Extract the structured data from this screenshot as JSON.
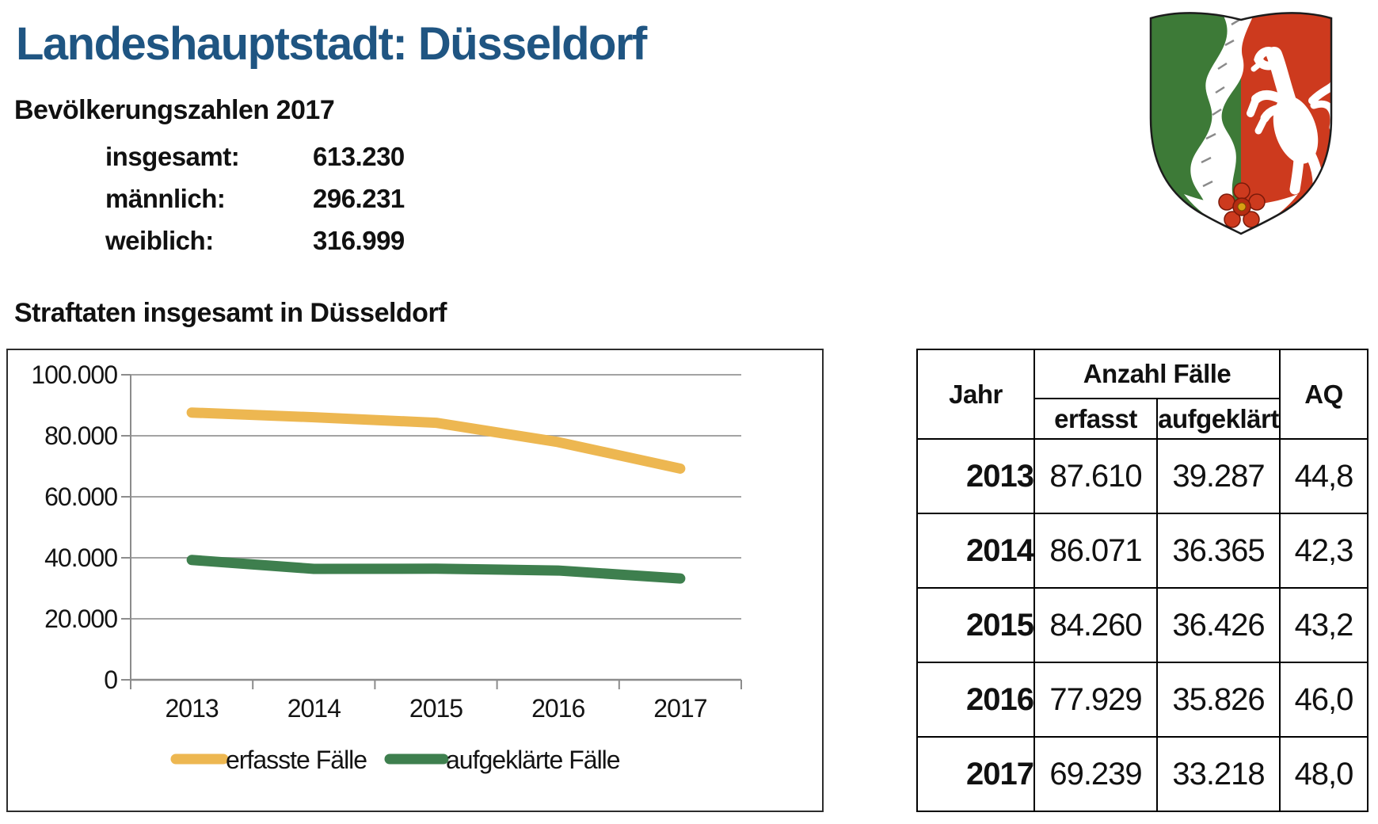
{
  "page": {
    "title": "Landeshauptstadt: Düsseldorf",
    "population": {
      "heading": "Bevölkerungszahlen 2017",
      "rows": [
        {
          "label": "insgesamt:",
          "value": "613.230"
        },
        {
          "label": "männlich:",
          "value": "296.231"
        },
        {
          "label": "weiblich:",
          "value": "316.999"
        }
      ]
    },
    "crimes_heading": "Straftaten insgesamt in Düsseldorf"
  },
  "coat_of_arms": {
    "name": "Landeswappen Nordrhein-Westfalen",
    "colors": {
      "green": "#3d7a37",
      "red": "#cd3a1e",
      "white": "#ffffff",
      "rose_gold": "#d8a013"
    }
  },
  "chart_data": {
    "type": "line",
    "title": "",
    "categories": [
      "2013",
      "2014",
      "2015",
      "2016",
      "2017"
    ],
    "series": [
      {
        "name": "erfasste Fälle",
        "color": "#EDB751",
        "values": [
          87610,
          86071,
          84260,
          77929,
          69239
        ]
      },
      {
        "name": "aufgeklärte Fälle",
        "color": "#3E7F4E",
        "values": [
          39287,
          36365,
          36426,
          35826,
          33218
        ]
      }
    ],
    "ylim": [
      0,
      100000
    ],
    "ytick_labels_top_down": [
      "100.000",
      "80.000",
      "60.000",
      "40.000",
      "20.000",
      "0"
    ],
    "grid": true,
    "legend_position": "bottom"
  },
  "table": {
    "headers": {
      "jahr": "Jahr",
      "anzahl": "Anzahl Fälle",
      "erfasst": "erfasst",
      "aufgeklaert": "aufgeklärt",
      "aq": "AQ"
    },
    "rows": [
      {
        "jahr": "2013",
        "erfasst": "87.610",
        "aufgeklaert": "39.287",
        "aq": "44,8"
      },
      {
        "jahr": "2014",
        "erfasst": "86.071",
        "aufgeklaert": "36.365",
        "aq": "42,3"
      },
      {
        "jahr": "2015",
        "erfasst": "84.260",
        "aufgeklaert": "36.426",
        "aq": "43,2"
      },
      {
        "jahr": "2016",
        "erfasst": "77.929",
        "aufgeklaert": "35.826",
        "aq": "46,0"
      },
      {
        "jahr": "2017",
        "erfasst": "69.239",
        "aufgeklaert": "33.218",
        "aq": "48,0"
      }
    ]
  }
}
